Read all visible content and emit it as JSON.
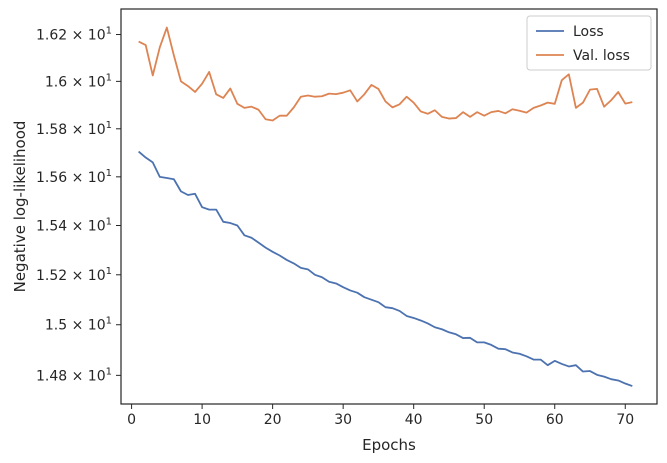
{
  "chart_data": {
    "type": "line",
    "xlabel": "Epochs",
    "ylabel": "Negative log-likelihood",
    "xlim": [
      -1.5,
      74.5
    ],
    "ylim": [
      14.688,
      16.31
    ],
    "yscale": "log",
    "grid": false,
    "legend_position": "top-right",
    "x_ticks": [
      {
        "value": 0,
        "label": "0"
      },
      {
        "value": 10,
        "label": "10"
      },
      {
        "value": 20,
        "label": "20"
      },
      {
        "value": 30,
        "label": "30"
      },
      {
        "value": 40,
        "label": "40"
      },
      {
        "value": 50,
        "label": "50"
      },
      {
        "value": 60,
        "label": "60"
      },
      {
        "value": 70,
        "label": "70"
      }
    ],
    "y_ticks": [
      {
        "value": 14.8,
        "mantissa": "1.48",
        "base": "10",
        "exp": "1"
      },
      {
        "value": 15.0,
        "mantissa": "1.5",
        "base": "10",
        "exp": "1"
      },
      {
        "value": 15.2,
        "mantissa": "1.52",
        "base": "10",
        "exp": "1"
      },
      {
        "value": 15.4,
        "mantissa": "1.54",
        "base": "10",
        "exp": "1"
      },
      {
        "value": 15.6,
        "mantissa": "1.56",
        "base": "10",
        "exp": "1"
      },
      {
        "value": 15.8,
        "mantissa": "1.58",
        "base": "10",
        "exp": "1"
      },
      {
        "value": 16.0,
        "mantissa": "1.6",
        "base": "10",
        "exp": "1"
      },
      {
        "value": 16.2,
        "mantissa": "1.62",
        "base": "10",
        "exp": "1"
      }
    ],
    "series": [
      {
        "name": "Loss",
        "color": "#4c72b0",
        "x": [
          1,
          2,
          3,
          4,
          5,
          6,
          7,
          8,
          9,
          10,
          11,
          12,
          13,
          14,
          15,
          16,
          17,
          18,
          19,
          20,
          21,
          22,
          23,
          24,
          25,
          26,
          27,
          28,
          29,
          30,
          31,
          32,
          33,
          34,
          35,
          36,
          37,
          38,
          39,
          40,
          41,
          42,
          43,
          44,
          45,
          46,
          47,
          48,
          49,
          50,
          51,
          52,
          53,
          54,
          55,
          56,
          57,
          58,
          59,
          60,
          61,
          62,
          63,
          64,
          65,
          66,
          67,
          68,
          69,
          70,
          71
        ],
        "y": [
          15.705,
          15.68,
          15.66,
          15.6,
          15.595,
          15.59,
          15.54,
          15.525,
          15.53,
          15.475,
          15.465,
          15.465,
          15.415,
          15.41,
          15.4,
          15.36,
          15.35,
          15.33,
          15.31,
          15.293,
          15.278,
          15.26,
          15.246,
          15.228,
          15.222,
          15.2,
          15.19,
          15.172,
          15.165,
          15.15,
          15.137,
          15.128,
          15.11,
          15.1,
          15.09,
          15.07,
          15.066,
          15.055,
          15.035,
          15.027,
          15.017,
          15.005,
          14.99,
          14.982,
          14.97,
          14.962,
          14.947,
          14.948,
          14.93,
          14.93,
          14.92,
          14.905,
          14.903,
          14.89,
          14.885,
          14.875,
          14.862,
          14.862,
          14.84,
          14.857,
          14.845,
          14.835,
          14.84,
          14.815,
          14.817,
          14.802,
          14.795,
          14.785,
          14.78,
          14.768,
          14.758
        ]
      },
      {
        "name": "Val. loss",
        "color": "#dd8452",
        "x": [
          1,
          2,
          3,
          4,
          5,
          6,
          7,
          8,
          9,
          10,
          11,
          12,
          13,
          14,
          15,
          16,
          17,
          18,
          19,
          20,
          21,
          22,
          23,
          24,
          25,
          26,
          27,
          28,
          29,
          30,
          31,
          32,
          33,
          34,
          35,
          36,
          37,
          38,
          39,
          40,
          41,
          42,
          43,
          44,
          45,
          46,
          47,
          48,
          49,
          50,
          51,
          52,
          53,
          54,
          55,
          56,
          57,
          58,
          59,
          60,
          61,
          62,
          63,
          64,
          65,
          66,
          67,
          68,
          69,
          70,
          71
        ],
        "y": [
          16.17,
          16.155,
          16.025,
          16.145,
          16.23,
          16.11,
          16.0,
          15.98,
          15.955,
          15.99,
          16.04,
          15.945,
          15.93,
          15.97,
          15.905,
          15.888,
          15.893,
          15.88,
          15.84,
          15.835,
          15.855,
          15.855,
          15.89,
          15.935,
          15.94,
          15.935,
          15.937,
          15.948,
          15.946,
          15.952,
          15.962,
          15.915,
          15.945,
          15.985,
          15.968,
          15.915,
          15.89,
          15.903,
          15.935,
          15.91,
          15.873,
          15.863,
          15.878,
          15.85,
          15.843,
          15.845,
          15.87,
          15.85,
          15.87,
          15.855,
          15.87,
          15.875,
          15.865,
          15.882,
          15.876,
          15.868,
          15.888,
          15.898,
          15.91,
          15.905,
          16.005,
          16.03,
          15.888,
          15.91,
          15.965,
          15.968,
          15.893,
          15.92,
          15.955,
          15.906,
          15.912
        ]
      }
    ]
  }
}
